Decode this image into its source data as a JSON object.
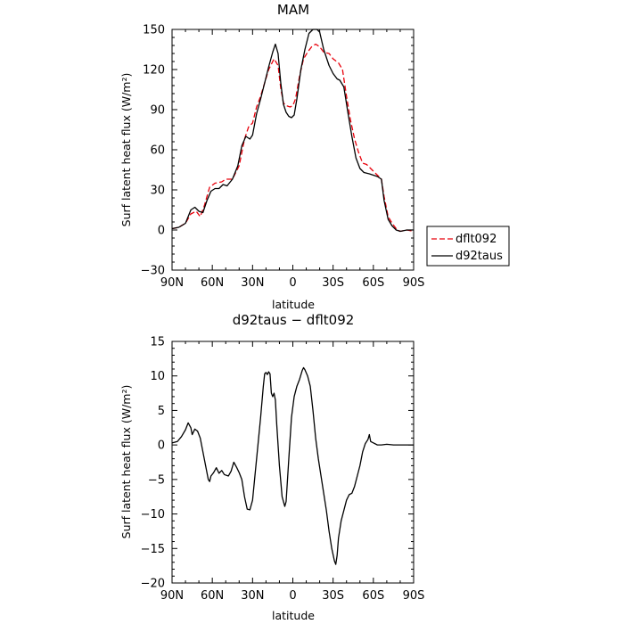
{
  "chart_data": [
    {
      "type": "line",
      "title": "MAM",
      "xlabel": "latitude",
      "ylabel": "Surf latent heat flux (W/m²)",
      "xlim": [
        -90,
        90
      ],
      "ylim": [
        -30,
        150
      ],
      "xticks": [
        -90,
        -60,
        -30,
        0,
        30,
        60,
        90
      ],
      "xtick_labels": [
        "90N",
        "60N",
        "30N",
        "0",
        "30S",
        "60S",
        "90S"
      ],
      "yticks": [
        -30,
        0,
        30,
        60,
        90,
        120,
        150
      ],
      "ytick_labels": [
        "−30",
        "0",
        "30",
        "60",
        "90",
        "120",
        "150"
      ],
      "grid": false,
      "legend": "right",
      "series": [
        {
          "name": "dflt092",
          "color": "#e8000b",
          "dash": "dashed",
          "points": [
            [
              -90,
              1
            ],
            [
              -85,
              2
            ],
            [
              -80,
              5
            ],
            [
              -76,
              12
            ],
            [
              -72,
              14
            ],
            [
              -69,
              10
            ],
            [
              -66,
              18
            ],
            [
              -62,
              32
            ],
            [
              -58,
              35
            ],
            [
              -53,
              36
            ],
            [
              -50,
              38
            ],
            [
              -45,
              38
            ],
            [
              -40,
              48
            ],
            [
              -36,
              68
            ],
            [
              -33,
              77
            ],
            [
              -30,
              80
            ],
            [
              -27,
              92
            ],
            [
              -24,
              100
            ],
            [
              -21,
              110
            ],
            [
              -18,
              120
            ],
            [
              -14,
              128
            ],
            [
              -11,
              123
            ],
            [
              -9,
              106
            ],
            [
              -7,
              95
            ],
            [
              -5,
              93
            ],
            [
              -2,
              92
            ],
            [
              0,
              93
            ],
            [
              2,
              98
            ],
            [
              5,
              115
            ],
            [
              8,
              128
            ],
            [
              11,
              133
            ],
            [
              14,
              137
            ],
            [
              17,
              139
            ],
            [
              20,
              137
            ],
            [
              23,
              133
            ],
            [
              27,
              132
            ],
            [
              30,
              128
            ],
            [
              34,
              125
            ],
            [
              37,
              120
            ],
            [
              40,
              100
            ],
            [
              43,
              82
            ],
            [
              46,
              68
            ],
            [
              49,
              58
            ],
            [
              52,
              50
            ],
            [
              55,
              49
            ],
            [
              58,
              46
            ],
            [
              62,
              42
            ],
            [
              66,
              38
            ],
            [
              68,
              25
            ],
            [
              71,
              10
            ],
            [
              74,
              5
            ],
            [
              77,
              1
            ],
            [
              80,
              -1
            ],
            [
              85,
              0
            ],
            [
              90,
              -1
            ]
          ]
        },
        {
          "name": "d92taus",
          "color": "#000000",
          "dash": "solid",
          "points": [
            [
              -90,
              1
            ],
            [
              -85,
              2
            ],
            [
              -80,
              5
            ],
            [
              -76,
              15
            ],
            [
              -73,
              17
            ],
            [
              -70,
              14
            ],
            [
              -67,
              13
            ],
            [
              -64,
              22
            ],
            [
              -61,
              29
            ],
            [
              -58,
              31
            ],
            [
              -55,
              31
            ],
            [
              -52,
              34
            ],
            [
              -49,
              33
            ],
            [
              -45,
              38
            ],
            [
              -41,
              48
            ],
            [
              -38,
              63
            ],
            [
              -35,
              70
            ],
            [
              -32,
              68
            ],
            [
              -30,
              71
            ],
            [
              -27,
              87
            ],
            [
              -24,
              98
            ],
            [
              -21,
              110
            ],
            [
              -18,
              122
            ],
            [
              -15,
              133
            ],
            [
              -13,
              139
            ],
            [
              -11,
              132
            ],
            [
              -9,
              110
            ],
            [
              -7,
              94
            ],
            [
              -5,
              88
            ],
            [
              -3,
              85
            ],
            [
              -1,
              84
            ],
            [
              1,
              86
            ],
            [
              3,
              98
            ],
            [
              6,
              120
            ],
            [
              9,
              135
            ],
            [
              12,
              147
            ],
            [
              15,
              150
            ],
            [
              18,
              150
            ],
            [
              20,
              148
            ],
            [
              23,
              135
            ],
            [
              27,
              123
            ],
            [
              30,
              117
            ],
            [
              33,
              113
            ],
            [
              35,
              112
            ],
            [
              38,
              107
            ],
            [
              41,
              88
            ],
            [
              44,
              70
            ],
            [
              47,
              54
            ],
            [
              50,
              46
            ],
            [
              53,
              43
            ],
            [
              57,
              42
            ],
            [
              60,
              41
            ],
            [
              63,
              40
            ],
            [
              66,
              38
            ],
            [
              68,
              22
            ],
            [
              71,
              8
            ],
            [
              74,
              3
            ],
            [
              77,
              0
            ],
            [
              80,
              -1
            ],
            [
              85,
              0
            ],
            [
              90,
              0
            ]
          ]
        }
      ]
    },
    {
      "type": "line",
      "title": "d92taus − dflt092",
      "xlabel": "latitude",
      "ylabel": "Surf latent heat flux (W/m²)",
      "xlim": [
        -90,
        90
      ],
      "ylim": [
        -20,
        15
      ],
      "xticks": [
        -90,
        -60,
        -30,
        0,
        30,
        60,
        90
      ],
      "xtick_labels": [
        "90N",
        "60N",
        "30N",
        "0",
        "30S",
        "60S",
        "90S"
      ],
      "yticks": [
        -20,
        -15,
        -10,
        -5,
        0,
        5,
        10,
        15
      ],
      "ytick_labels": [
        "−20",
        "−15",
        "−10",
        "−5",
        "0",
        "5",
        "10",
        "15"
      ],
      "grid": false,
      "series": [
        {
          "color": "#000000",
          "dash": "solid",
          "points": [
            [
              -90,
              0.3
            ],
            [
              -86,
              0.5
            ],
            [
              -83,
              1.2
            ],
            [
              -80,
              2.2
            ],
            [
              -78,
              3.2
            ],
            [
              -76,
              2.5
            ],
            [
              -75,
              1.5
            ],
            [
              -73,
              2.3
            ],
            [
              -71,
              2.0
            ],
            [
              -69,
              1.0
            ],
            [
              -67,
              -1.0
            ],
            [
              -65,
              -3.0
            ],
            [
              -63,
              -5.0
            ],
            [
              -62,
              -5.3
            ],
            [
              -61,
              -4.5
            ],
            [
              -59,
              -4.0
            ],
            [
              -57,
              -3.3
            ],
            [
              -56,
              -3.7
            ],
            [
              -55,
              -4.1
            ],
            [
              -53,
              -3.7
            ],
            [
              -51,
              -4.3
            ],
            [
              -48,
              -4.5
            ],
            [
              -46,
              -3.8
            ],
            [
              -44,
              -2.5
            ],
            [
              -42,
              -3.2
            ],
            [
              -40,
              -4.0
            ],
            [
              -38,
              -5.0
            ],
            [
              -36,
              -7.5
            ],
            [
              -34,
              -9.3
            ],
            [
              -32,
              -9.4
            ],
            [
              -30,
              -8.0
            ],
            [
              -28,
              -4.0
            ],
            [
              -26,
              0.0
            ],
            [
              -24,
              4.0
            ],
            [
              -22,
              8.5
            ],
            [
              -21,
              10.3
            ],
            [
              -20,
              10.5
            ],
            [
              -19,
              10.2
            ],
            [
              -18,
              10.6
            ],
            [
              -17,
              10.3
            ],
            [
              -16,
              7.5
            ],
            [
              -15,
              7.0
            ],
            [
              -14,
              7.5
            ],
            [
              -13,
              6.5
            ],
            [
              -12,
              3.0
            ],
            [
              -10,
              -3.0
            ],
            [
              -8,
              -7.5
            ],
            [
              -6,
              -8.9
            ],
            [
              -5,
              -8.2
            ],
            [
              -3,
              -2.0
            ],
            [
              -1,
              4.0
            ],
            [
              1,
              7.0
            ],
            [
              3,
              8.5
            ],
            [
              5,
              9.5
            ],
            [
              7,
              10.8
            ],
            [
              8,
              11.2
            ],
            [
              9,
              10.9
            ],
            [
              11,
              10.0
            ],
            [
              13,
              8.5
            ],
            [
              15,
              5.0
            ],
            [
              17,
              1.0
            ],
            [
              19,
              -2.0
            ],
            [
              21,
              -4.5
            ],
            [
              23,
              -7.0
            ],
            [
              25,
              -9.5
            ],
            [
              27,
              -12.5
            ],
            [
              29,
              -15.0
            ],
            [
              31,
              -16.8
            ],
            [
              32,
              -17.3
            ],
            [
              33,
              -16.0
            ],
            [
              34,
              -13.5
            ],
            [
              36,
              -11.0
            ],
            [
              38,
              -9.5
            ],
            [
              40,
              -8.0
            ],
            [
              42,
              -7.2
            ],
            [
              44,
              -7.0
            ],
            [
              46,
              -6.0
            ],
            [
              48,
              -4.5
            ],
            [
              50,
              -3.0
            ],
            [
              52,
              -1.0
            ],
            [
              54,
              0.2
            ],
            [
              56,
              0.8
            ],
            [
              57,
              1.5
            ],
            [
              58,
              0.5
            ],
            [
              60,
              0.3
            ],
            [
              63,
              0.0
            ],
            [
              66,
              0.0
            ],
            [
              70,
              0.1
            ],
            [
              75,
              0.0
            ],
            [
              80,
              0.0
            ],
            [
              85,
              0.0
            ],
            [
              90,
              0.0
            ]
          ]
        }
      ]
    }
  ]
}
